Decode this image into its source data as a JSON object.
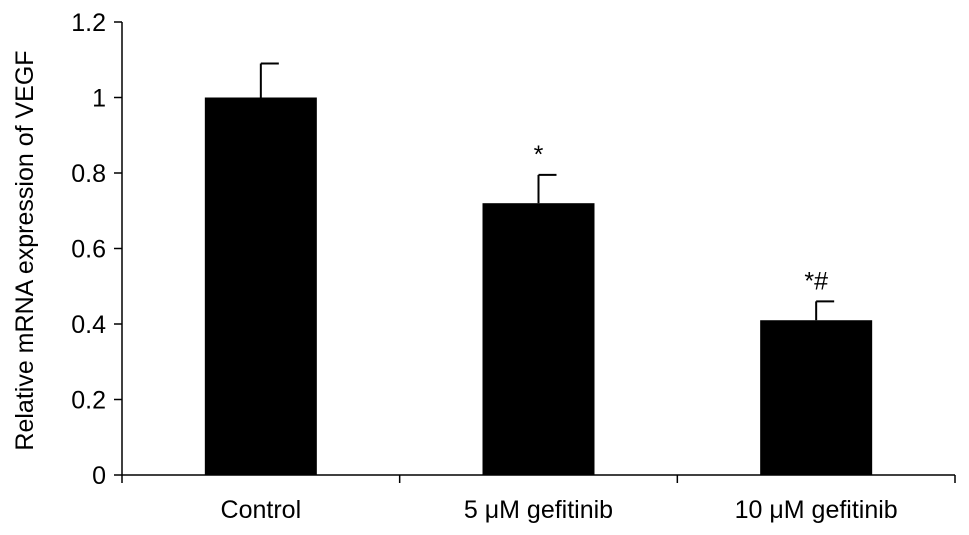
{
  "chart_data": {
    "type": "bar",
    "title": "",
    "xlabel": "",
    "ylabel": "Relative mRNA expression of VEGF",
    "categories": [
      "Control",
      "5 μM gefitinib",
      "10 μM gefitinib"
    ],
    "values": [
      1.0,
      0.72,
      0.41
    ],
    "errors": [
      0.09,
      0.075,
      0.05
    ],
    "annotations": [
      "",
      "*",
      "*#"
    ],
    "ylim": [
      0,
      1.2
    ],
    "yticks": [
      0,
      0.2,
      0.4,
      0.6,
      0.8,
      1,
      1.2
    ],
    "ytick_labels": [
      "0",
      "0.2",
      "0.4",
      "0.6",
      "0.8",
      "1",
      "1.2"
    ],
    "grid": false,
    "legend": "none",
    "bar_color": "#000000"
  }
}
